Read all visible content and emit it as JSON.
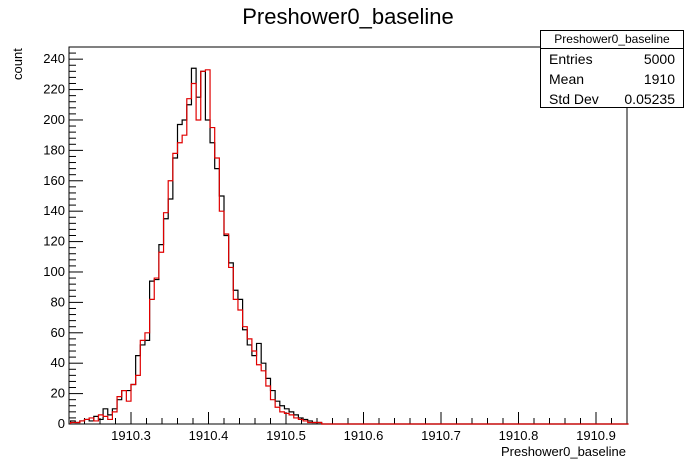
{
  "chart_data": {
    "type": "histogram",
    "title": "Preshower0_baseline",
    "xlabel": "Preshower0_baseline",
    "ylabel": "count",
    "xlim": [
      1910.22,
      1910.94
    ],
    "ylim": [
      0,
      248
    ],
    "x_ticks": [
      "1910.3",
      "1910.4",
      "1910.5",
      "1910.6",
      "1910.7",
      "1910.8",
      "1910.9"
    ],
    "x_tick_values": [
      1910.3,
      1910.4,
      1910.5,
      1910.6,
      1910.7,
      1910.8,
      1910.9
    ],
    "y_ticks": [
      "0",
      "20",
      "40",
      "60",
      "80",
      "100",
      "120",
      "140",
      "160",
      "180",
      "200",
      "220",
      "240"
    ],
    "y_tick_values": [
      0,
      20,
      40,
      60,
      80,
      100,
      120,
      140,
      160,
      180,
      200,
      220,
      240
    ],
    "bin_width": 0.006,
    "grid": false,
    "legend": "none",
    "series": [
      {
        "color": "#000000",
        "x_start": 1910.222,
        "values": [
          2,
          1,
          2,
          3,
          2,
          5,
          3,
          10,
          6,
          10,
          16,
          22,
          22,
          26,
          45,
          52,
          55,
          94,
          95,
          118,
          135,
          148,
          175,
          197,
          200,
          210,
          234,
          215,
          232,
          200,
          185,
          168,
          150,
          124,
          106,
          88,
          82,
          62,
          52,
          45,
          53,
          40,
          30,
          22,
          15,
          12,
          10,
          8,
          6,
          4,
          3,
          2,
          1,
          1,
          0,
          0,
          0,
          0,
          0,
          0,
          0,
          0,
          0,
          0,
          0,
          0,
          0,
          0,
          0,
          0,
          0,
          0,
          0,
          0,
          0,
          0,
          0,
          0,
          0,
          0,
          0,
          0,
          0,
          0,
          0,
          0,
          0,
          0,
          0,
          0,
          0,
          0,
          0,
          0,
          0,
          0,
          0,
          0,
          0,
          0,
          0,
          0,
          0,
          0,
          0,
          0,
          0,
          0,
          0,
          0,
          0,
          0,
          0,
          0,
          0,
          0,
          0,
          0,
          0,
          0
        ]
      },
      {
        "color": "#e00000",
        "x_start": 1910.222,
        "values": [
          1,
          1,
          2,
          3,
          4,
          2,
          6,
          5,
          3,
          8,
          18,
          22,
          15,
          26,
          32,
          55,
          60,
          82,
          96,
          113,
          139,
          160,
          178,
          185,
          190,
          214,
          224,
          200,
          232,
          233,
          195,
          175,
          140,
          125,
          103,
          82,
          75,
          64,
          56,
          48,
          39,
          35,
          25,
          16,
          11,
          8,
          7,
          6,
          4,
          3,
          2,
          1,
          1,
          1,
          0,
          0,
          0,
          0,
          0,
          0,
          0,
          0,
          0,
          0,
          0,
          0,
          0,
          0,
          0,
          0,
          0,
          0,
          0,
          0,
          0,
          0,
          0,
          0,
          0,
          0,
          0,
          0,
          0,
          0,
          0,
          0,
          0,
          0,
          0,
          0,
          0,
          0,
          0,
          0,
          0,
          0,
          0,
          0,
          0,
          0,
          0,
          0,
          0,
          0,
          0,
          0,
          0,
          0,
          0,
          0,
          0,
          0,
          0,
          0,
          0,
          0,
          0,
          0,
          0,
          0
        ]
      }
    ]
  },
  "stats": {
    "header": "Preshower0_baseline",
    "rows": [
      {
        "label": "Entries",
        "value": "5000"
      },
      {
        "label": "Mean",
        "value": "1910"
      },
      {
        "label": "Std Dev",
        "value": "0.05235"
      }
    ]
  }
}
